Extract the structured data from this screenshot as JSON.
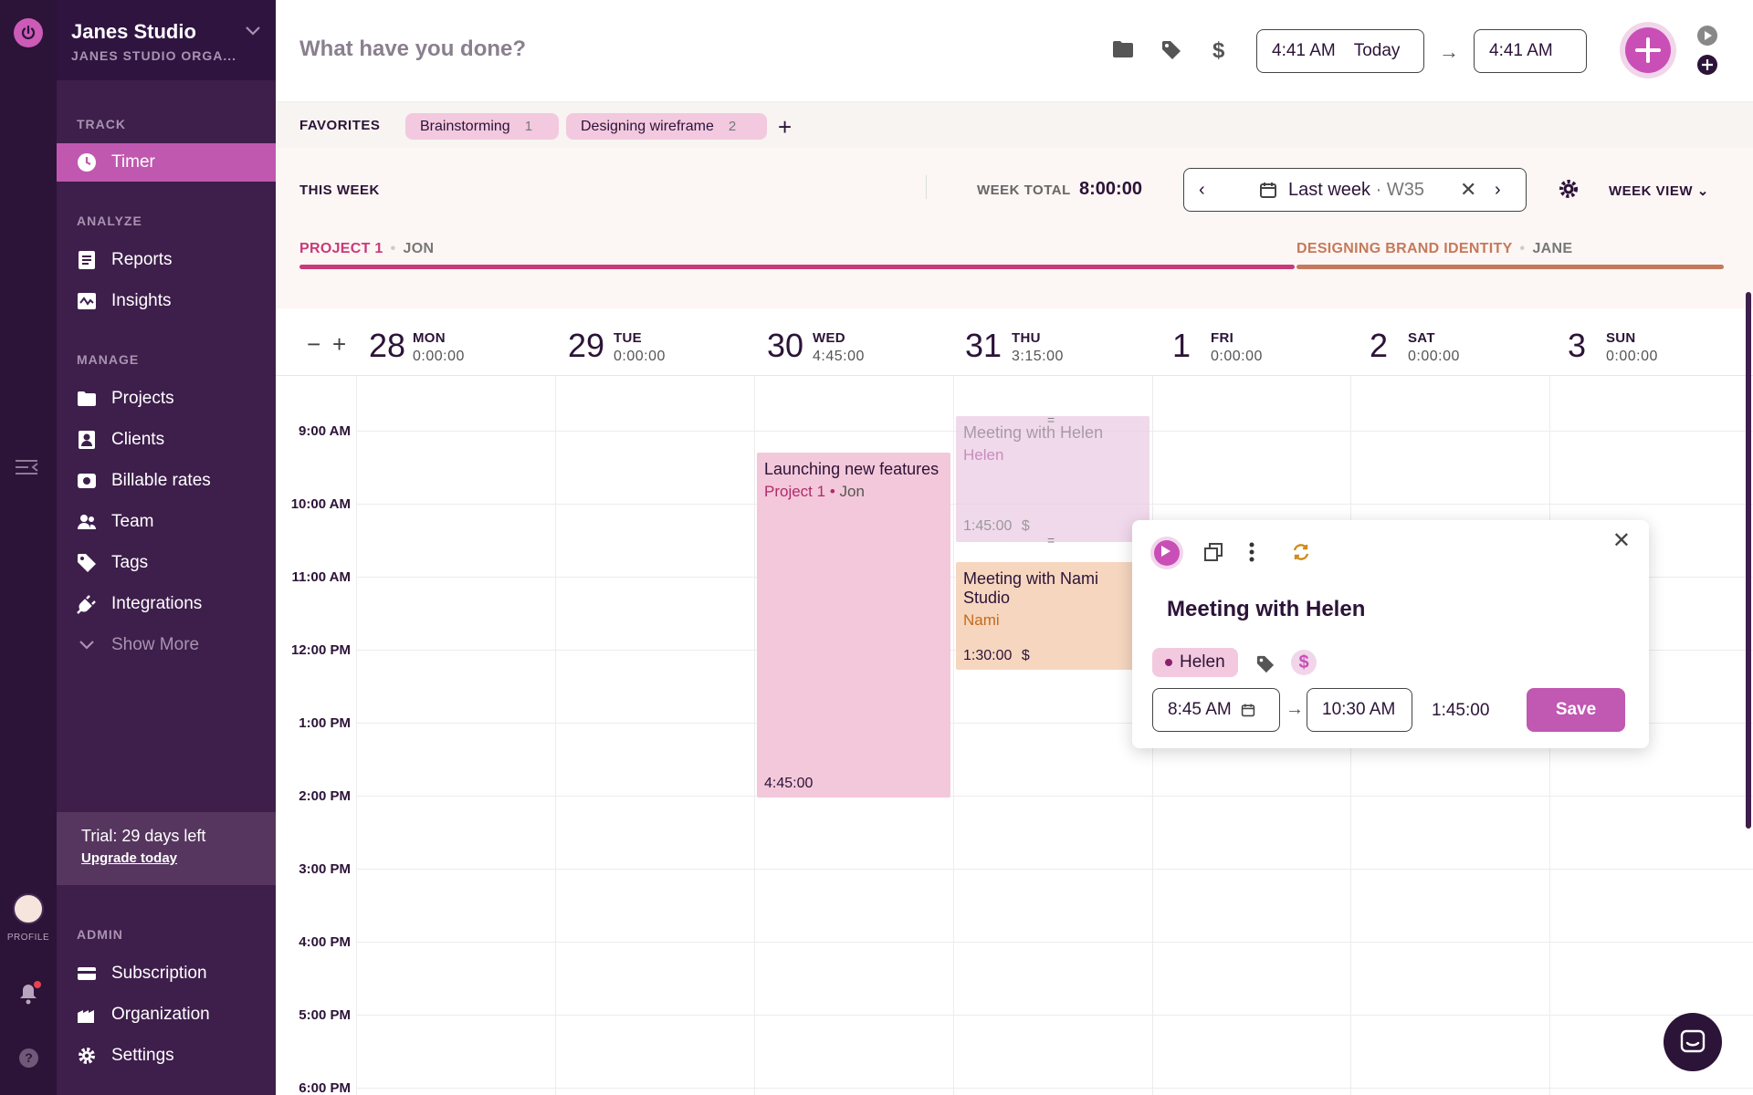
{
  "workspace": {
    "name": "Janes Studio",
    "org": "JANES STUDIO ORGA..."
  },
  "sidebar": {
    "sections": {
      "track": "TRACK",
      "analyze": "ANALYZE",
      "manage": "MANAGE",
      "admin": "ADMIN"
    },
    "items": {
      "timer": "Timer",
      "reports": "Reports",
      "insights": "Insights",
      "projects": "Projects",
      "clients": "Clients",
      "billable_rates": "Billable rates",
      "team": "Team",
      "tags": "Tags",
      "integrations": "Integrations",
      "show_more": "Show More",
      "subscription": "Subscription",
      "organization": "Organization",
      "settings": "Settings"
    },
    "trial": {
      "text": "Trial: 29 days left",
      "link": "Upgrade today"
    }
  },
  "rail": {
    "profile": "PROFILE",
    "help": "?"
  },
  "topbar": {
    "description_placeholder": "What have you done?",
    "start_time": "4:41 AM",
    "start_day": "Today",
    "end_time": "4:41 AM"
  },
  "favorites": {
    "label": "FAVORITES",
    "items": [
      {
        "name": "Brainstorming",
        "count": "1"
      },
      {
        "name": "Designing wireframe",
        "count": "2"
      }
    ],
    "add": "+"
  },
  "week": {
    "label": "THIS WEEK",
    "total_label": "WEEK TOTAL",
    "total": "8:00:00",
    "range_label": "Last week",
    "range_week": "· W35",
    "view": "WEEK VIEW",
    "projects": [
      {
        "name": "PROJECT 1",
        "person": "JON",
        "color": "#c83a7a"
      },
      {
        "name": "DESIGNING BRAND IDENTITY",
        "person": "JANE",
        "color": "#c47a5a"
      }
    ]
  },
  "days": [
    {
      "num": "28",
      "name": "MON",
      "total": "0:00:00"
    },
    {
      "num": "29",
      "name": "TUE",
      "total": "0:00:00"
    },
    {
      "num": "30",
      "name": "WED",
      "total": "4:45:00"
    },
    {
      "num": "31",
      "name": "THU",
      "total": "3:15:00"
    },
    {
      "num": "1",
      "name": "FRI",
      "total": "0:00:00"
    },
    {
      "num": "2",
      "name": "SAT",
      "total": "0:00:00"
    },
    {
      "num": "3",
      "name": "SUN",
      "total": "0:00:00"
    }
  ],
  "times": [
    "9:00 AM",
    "10:00 AM",
    "11:00 AM",
    "12:00 PM",
    "1:00 PM",
    "2:00 PM",
    "3:00 PM",
    "4:00 PM",
    "5:00 PM",
    "6:00 PM"
  ],
  "entries": {
    "launch": {
      "title": "Launching new features",
      "project": "Project 1",
      "client": "Jon",
      "duration": "4:45:00",
      "color": "#f3c8da"
    },
    "helen": {
      "title": "Meeting with Helen",
      "project": "Helen",
      "duration": "1:45:00",
      "color": "#edcde6"
    },
    "nami": {
      "title": "Meeting with Nami Studio",
      "project": "Nami",
      "duration": "1:30:00",
      "color": "#f6d6bf"
    }
  },
  "popup": {
    "title": "Meeting with Helen",
    "project": "Helen",
    "start": "8:45 AM",
    "end": "10:30 AM",
    "duration": "1:45:00",
    "save": "Save"
  },
  "colors": {
    "accent": "#c158b2",
    "sidebar": "#3e1e4b",
    "rail": "#2c1338"
  }
}
